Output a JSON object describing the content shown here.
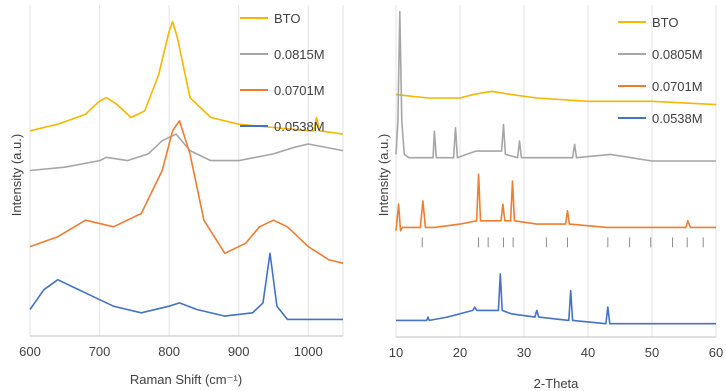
{
  "chart_data": [
    {
      "type": "line",
      "xlabel": "Raman Shift (cm⁻¹)",
      "ylabel": "Intensity (a.u.)",
      "xlim": [
        600,
        1050
      ],
      "x_ticks": [
        600,
        700,
        800,
        900,
        1000
      ],
      "y_ticks_shown": false,
      "grid": "vertical",
      "legend": "top-right",
      "series": [
        {
          "name": "BTO",
          "color": "#f5b700",
          "x": [
            600,
            640,
            680,
            700,
            710,
            725,
            745,
            765,
            785,
            800,
            805,
            812,
            830,
            860,
            900,
            950,
            1000,
            1008,
            1012,
            1016,
            1050
          ],
          "y": [
            0.62,
            0.64,
            0.67,
            0.71,
            0.72,
            0.7,
            0.66,
            0.68,
            0.79,
            0.92,
            0.95,
            0.9,
            0.72,
            0.66,
            0.64,
            0.63,
            0.62,
            0.62,
            0.66,
            0.62,
            0.61
          ]
        },
        {
          "name": "0.0815M",
          "color": "#a6a6a6",
          "x": [
            600,
            650,
            700,
            710,
            740,
            770,
            790,
            810,
            830,
            860,
            900,
            950,
            980,
            1000,
            1050
          ],
          "y": [
            0.5,
            0.51,
            0.53,
            0.54,
            0.53,
            0.55,
            0.59,
            0.61,
            0.56,
            0.53,
            0.53,
            0.55,
            0.57,
            0.58,
            0.56
          ]
        },
        {
          "name": "0.0701M",
          "color": "#ed7d31",
          "x": [
            600,
            640,
            680,
            720,
            760,
            790,
            805,
            815,
            830,
            850,
            880,
            910,
            930,
            950,
            970,
            1000,
            1030,
            1050
          ],
          "y": [
            0.27,
            0.3,
            0.35,
            0.33,
            0.37,
            0.5,
            0.62,
            0.65,
            0.55,
            0.35,
            0.25,
            0.28,
            0.33,
            0.35,
            0.33,
            0.27,
            0.23,
            0.22
          ]
        },
        {
          "name": "0.0538M",
          "color": "#4472c4",
          "x": [
            600,
            620,
            640,
            660,
            690,
            720,
            760,
            800,
            815,
            840,
            880,
            920,
            935,
            945,
            955,
            970,
            1000,
            1050
          ],
          "y": [
            0.08,
            0.14,
            0.17,
            0.15,
            0.12,
            0.09,
            0.07,
            0.09,
            0.1,
            0.08,
            0.06,
            0.07,
            0.1,
            0.25,
            0.09,
            0.05,
            0.05,
            0.05
          ]
        }
      ]
    },
    {
      "type": "line",
      "xlabel": "2-Theta",
      "ylabel": "Intensity (a.u.)",
      "xlim": [
        10,
        60
      ],
      "x_ticks": [
        10,
        20,
        30,
        40,
        50,
        60
      ],
      "y_ticks_shown": false,
      "grid": "vertical",
      "legend": "top-right",
      "series": [
        {
          "name": "BTO",
          "color": "#f5b700",
          "x": [
            10,
            15,
            20,
            22,
            25,
            28,
            32,
            40,
            50,
            60
          ],
          "y": [
            0.73,
            0.72,
            0.72,
            0.73,
            0.74,
            0.73,
            0.72,
            0.71,
            0.71,
            0.7
          ]
        },
        {
          "name": "0.0805M",
          "color": "#a6a6a6",
          "x": [
            10,
            10.3,
            10.6,
            10.9,
            11.3,
            12,
            14,
            15.8,
            16,
            16.3,
            19,
            19.3,
            19.6,
            21,
            22.5,
            26.5,
            26.8,
            27.1,
            29,
            29.3,
            29.6,
            32,
            37.6,
            37.9,
            38.2,
            43.5,
            50,
            60
          ],
          "y": [
            0.55,
            0.65,
            0.98,
            0.65,
            0.55,
            0.54,
            0.54,
            0.54,
            0.62,
            0.54,
            0.54,
            0.63,
            0.54,
            0.55,
            0.56,
            0.56,
            0.64,
            0.55,
            0.54,
            0.59,
            0.54,
            0.54,
            0.54,
            0.58,
            0.54,
            0.55,
            0.53,
            0.53
          ]
        },
        {
          "name": "0.0701M",
          "color": "#ed7d31",
          "x": [
            10,
            10.4,
            10.7,
            11,
            13.8,
            14.2,
            14.6,
            16,
            20,
            22.6,
            22.9,
            23.2,
            26.4,
            26.7,
            27,
            27.9,
            28.2,
            28.5,
            32,
            36.5,
            36.8,
            37.1,
            43,
            50,
            55.3,
            55.6,
            56,
            60
          ],
          "y": [
            0.32,
            0.4,
            0.32,
            0.33,
            0.33,
            0.41,
            0.33,
            0.33,
            0.34,
            0.35,
            0.49,
            0.35,
            0.35,
            0.4,
            0.35,
            0.35,
            0.47,
            0.35,
            0.34,
            0.34,
            0.38,
            0.34,
            0.33,
            0.33,
            0.33,
            0.35,
            0.33,
            0.33
          ]
        },
        {
          "name": "0.0538M",
          "color": "#4472c4",
          "x": [
            10,
            13,
            14.8,
            15,
            15.2,
            18,
            22,
            22.3,
            22.6,
            26,
            26.3,
            26.6,
            28,
            31.7,
            32,
            32.3,
            37,
            37.3,
            37.6,
            42.8,
            43.1,
            43.4,
            50,
            60
          ],
          "y": [
            0.05,
            0.05,
            0.05,
            0.06,
            0.05,
            0.06,
            0.08,
            0.09,
            0.08,
            0.08,
            0.19,
            0.08,
            0.07,
            0.06,
            0.08,
            0.06,
            0.05,
            0.14,
            0.05,
            0.04,
            0.09,
            0.04,
            0.04,
            0.04
          ]
        }
      ],
      "reference_lines_2theta": [
        14.1,
        22.9,
        24.4,
        26.8,
        28.3,
        33.5,
        36.8,
        43.1,
        46.5,
        49.8,
        53.2,
        55.5,
        58.0
      ]
    }
  ]
}
